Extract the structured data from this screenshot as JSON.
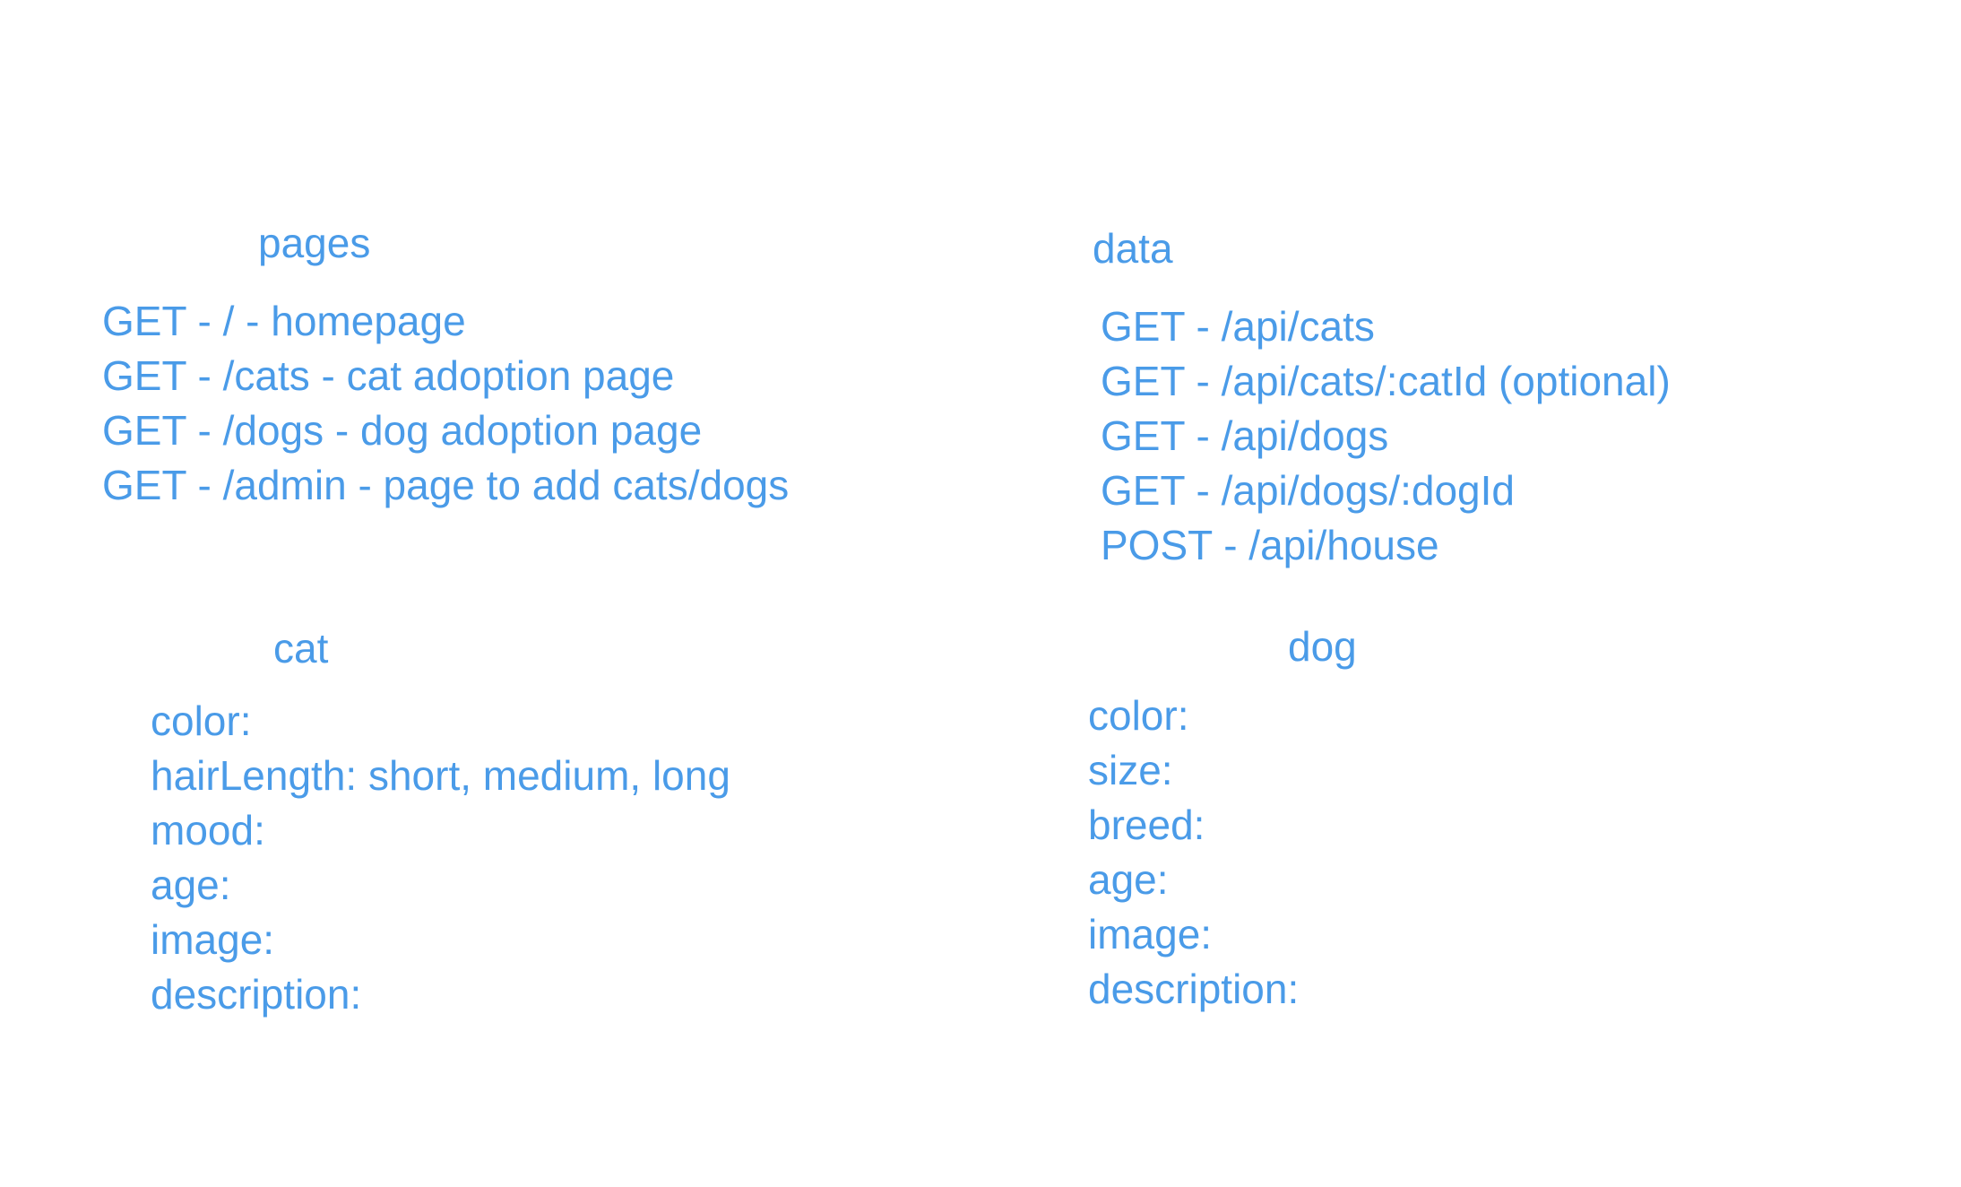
{
  "pages": {
    "heading": "pages",
    "items": [
      "GET - / - homepage",
      "GET - /cats - cat adoption page",
      "GET - /dogs - dog adoption page",
      "GET - /admin - page to add cats/dogs"
    ]
  },
  "data": {
    "heading": "data",
    "items": [
      "GET - /api/cats",
      "GET - /api/cats/:catId (optional)",
      "GET - /api/dogs",
      "GET - /api/dogs/:dogId",
      "POST - /api/house"
    ]
  },
  "cat": {
    "heading": "cat",
    "fields": [
      "color:",
      "hairLength: short, medium, long",
      "mood:",
      "age:",
      "image:",
      "description:"
    ]
  },
  "dog": {
    "heading": "dog",
    "fields": [
      "color:",
      "size:",
      "breed:",
      "age:",
      "image:",
      "description:"
    ]
  },
  "colors": {
    "text": "#4a9be8",
    "background": "#ffffff"
  }
}
